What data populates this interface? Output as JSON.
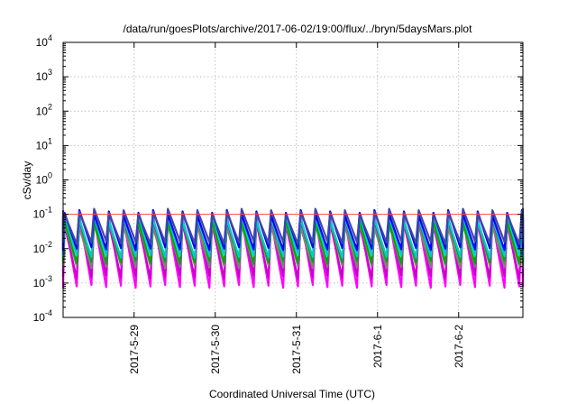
{
  "chart_data": {
    "type": "line",
    "title": "/data/run/goesPlots/archive/2017-06-02/19:00/flux/../bryn/5daysMars.plot",
    "xlabel": "Coordinated Universal Time (UTC)",
    "ylabel": "cSv/day",
    "y_scale": "log",
    "ylim": [
      0.0001,
      10000
    ],
    "y_ticks": [
      {
        "base": "10",
        "exp": "-4"
      },
      {
        "base": "10",
        "exp": "-3"
      },
      {
        "base": "10",
        "exp": "-2"
      },
      {
        "base": "10",
        "exp": "-1"
      },
      {
        "base": "10",
        "exp": "0"
      },
      {
        "base": "10",
        "exp": "1"
      },
      {
        "base": "10",
        "exp": "2"
      },
      {
        "base": "10",
        "exp": "3"
      },
      {
        "base": "10",
        "exp": "4"
      }
    ],
    "xlim": [
      "2017-05-28 03:00",
      "2017-06-02 19:00"
    ],
    "x_ticks": [
      "2017-5-29",
      "2017-5-30",
      "2017-5-31",
      "2017-6-1",
      "2017-6-2"
    ],
    "grid": true,
    "reference_line_y": 0.1,
    "series": [
      {
        "color": "#ff00ff",
        "peak": 0.08,
        "trough": 0.0008
      },
      {
        "color": "#cc00cc",
        "peak": 0.06,
        "trough": 0.0015
      },
      {
        "color": "#808080",
        "peak": 0.05,
        "trough": 0.003
      },
      {
        "color": "#00aa00",
        "peak": 0.07,
        "trough": 0.004
      },
      {
        "color": "#00cccc",
        "peak": 0.08,
        "trough": 0.006
      },
      {
        "color": "#0000ff",
        "peak": 0.11,
        "trough": 0.01
      },
      {
        "color": "#4444aa",
        "peak": 0.12,
        "trough": 0.015
      }
    ],
    "cycles_per_day": 5.5
  }
}
